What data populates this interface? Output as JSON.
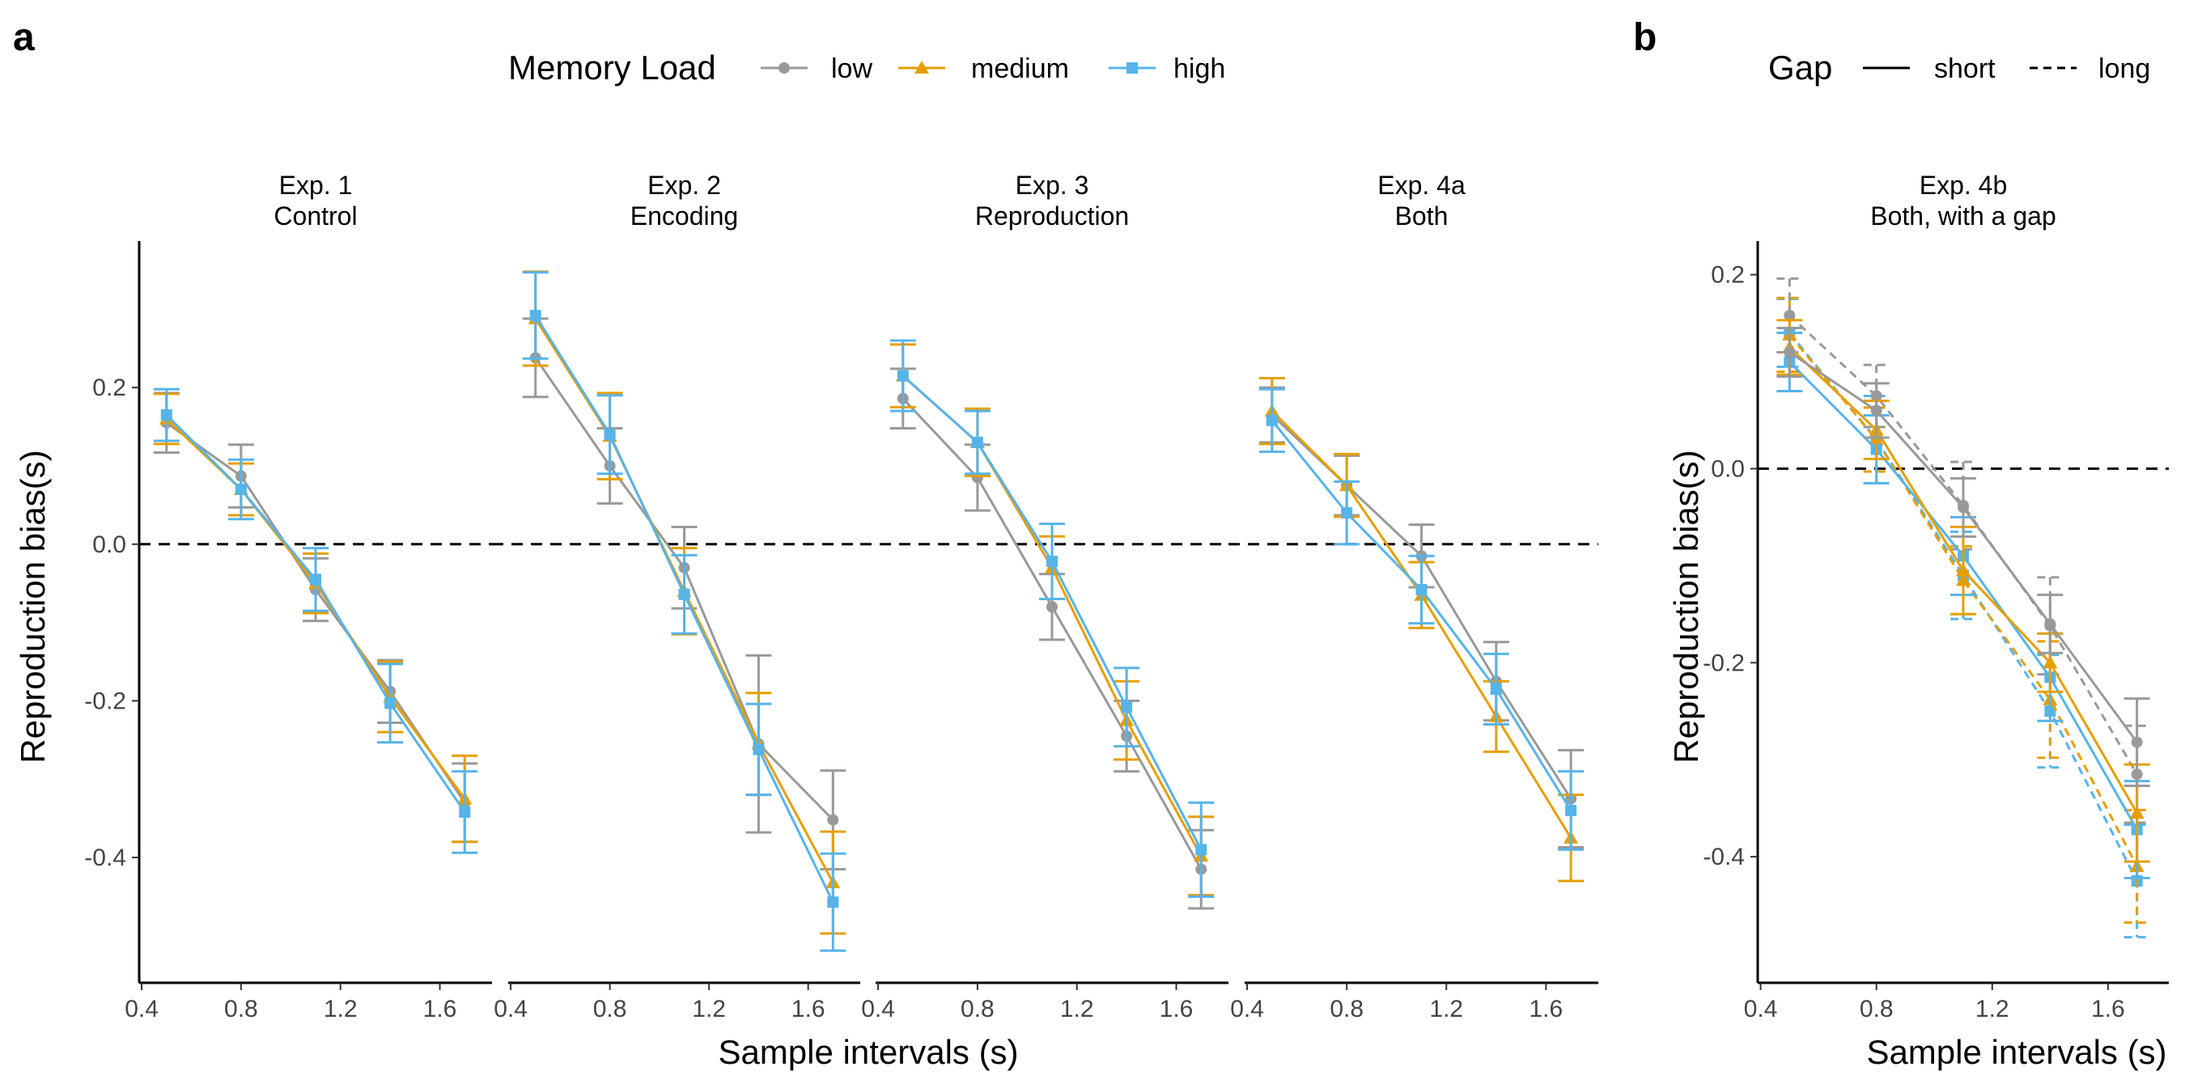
{
  "panel_labels": {
    "a": "a",
    "b": "b"
  },
  "legends": {
    "memory_load": {
      "title": "Memory Load",
      "items": [
        {
          "key": "low",
          "label": "low",
          "color": "#999999",
          "marker": "circle"
        },
        {
          "key": "medium",
          "label": "medium",
          "color": "#E69F00",
          "marker": "triangle"
        },
        {
          "key": "high",
          "label": "high",
          "color": "#56B4E9",
          "marker": "square"
        }
      ]
    },
    "gap": {
      "title": "Gap",
      "items": [
        {
          "key": "short",
          "label": "short",
          "linetype": "solid"
        },
        {
          "key": "long",
          "label": "long",
          "linetype": "dashed"
        }
      ]
    }
  },
  "axes": {
    "ylabel": "Reproduction bias(s)",
    "xlabel": "Sample intervals (s)"
  },
  "chart_data": [
    {
      "type": "line",
      "panel": "a",
      "ylabel": "Reproduction bias(s)",
      "xlabel": "Sample intervals (s)",
      "x": [
        0.5,
        0.8,
        1.1,
        1.4,
        1.7
      ],
      "x_ticks": [
        "0.4",
        "0.8",
        "1.2",
        "1.6"
      ],
      "x_tick_values": [
        0.4,
        0.8,
        1.2,
        1.6
      ],
      "xlim": [
        0.39,
        1.81
      ],
      "ylim": [
        -0.56,
        0.385
      ],
      "y_ticks": [
        "0.2",
        "0.0",
        "-0.2",
        "-0.4"
      ],
      "y_tick_values": [
        0.2,
        0.0,
        -0.2,
        -0.4
      ],
      "reference_line": 0,
      "facets": [
        {
          "title_line1": "Exp. 1",
          "title_line2": "Control",
          "series": [
            {
              "name": "low",
              "values": [
                0.155,
                0.087,
                -0.058,
                -0.188,
                -0.33
              ],
              "err": [
                0.038,
                0.04,
                0.04,
                0.04,
                0.05
              ]
            },
            {
              "name": "medium",
              "values": [
                0.16,
                0.07,
                -0.05,
                -0.195,
                -0.325
              ],
              "err": [
                0.032,
                0.033,
                0.038,
                0.045,
                0.055
              ]
            },
            {
              "name": "high",
              "values": [
                0.165,
                0.07,
                -0.045,
                -0.203,
                -0.342
              ],
              "err": [
                0.033,
                0.038,
                0.04,
                0.05,
                0.052
              ]
            }
          ]
        },
        {
          "title_line1": "Exp. 2",
          "title_line2": "Encoding",
          "series": [
            {
              "name": "low",
              "values": [
                0.238,
                0.1,
                -0.03,
                -0.255,
                -0.352
              ],
              "err": [
                0.05,
                0.048,
                0.052,
                0.113,
                0.063
              ]
            },
            {
              "name": "medium",
              "values": [
                0.288,
                0.138,
                -0.06,
                -0.255,
                -0.432
              ],
              "err": [
                0.06,
                0.055,
                0.055,
                0.065,
                0.065
              ]
            },
            {
              "name": "high",
              "values": [
                0.292,
                0.14,
                -0.064,
                -0.262,
                -0.457
              ],
              "err": [
                0.055,
                0.05,
                0.05,
                0.058,
                0.062
              ]
            }
          ]
        },
        {
          "title_line1": "Exp. 3",
          "title_line2": "Reproduction",
          "series": [
            {
              "name": "low",
              "values": [
                0.186,
                0.085,
                -0.08,
                -0.245,
                -0.415
              ],
              "err": [
                0.038,
                0.042,
                0.042,
                0.045,
                0.05
              ]
            },
            {
              "name": "medium",
              "values": [
                0.215,
                0.13,
                -0.03,
                -0.225,
                -0.398
              ],
              "err": [
                0.04,
                0.043,
                0.04,
                0.05,
                0.05
              ]
            },
            {
              "name": "high",
              "values": [
                0.215,
                0.13,
                -0.022,
                -0.208,
                -0.39
              ],
              "err": [
                0.045,
                0.04,
                0.048,
                0.05,
                0.06
              ]
            }
          ]
        },
        {
          "title_line1": "Exp. 4a",
          "title_line2": "Both",
          "series": [
            {
              "name": "low",
              "values": [
                0.165,
                0.075,
                -0.015,
                -0.175,
                -0.325
              ],
              "err": [
                0.035,
                0.038,
                0.04,
                0.05,
                0.062
              ]
            },
            {
              "name": "medium",
              "values": [
                0.17,
                0.075,
                -0.065,
                -0.22,
                -0.375
              ],
              "err": [
                0.042,
                0.04,
                0.042,
                0.045,
                0.055
              ]
            },
            {
              "name": "high",
              "values": [
                0.158,
                0.04,
                -0.058,
                -0.185,
                -0.34
              ],
              "err": [
                0.04,
                0.04,
                0.043,
                0.045,
                0.05
              ]
            }
          ]
        }
      ]
    },
    {
      "type": "line",
      "panel": "b",
      "ylabel": "Reproduction bias(s)",
      "xlabel": "Sample intervals (s)",
      "title_line1": "Exp. 4b",
      "title_line2": "Both, with a gap",
      "x": [
        0.5,
        0.8,
        1.1,
        1.4,
        1.7
      ],
      "x_ticks": [
        "0.4",
        "0.8",
        "1.2",
        "1.6"
      ],
      "x_tick_values": [
        0.4,
        0.8,
        1.2,
        1.6
      ],
      "xlim": [
        0.39,
        1.81
      ],
      "ylim": [
        -0.53,
        0.233
      ],
      "y_ticks": [
        "0.2",
        "0.0",
        "-0.2",
        "-0.4"
      ],
      "y_tick_values": [
        0.2,
        0.0,
        -0.2,
        -0.4
      ],
      "reference_line": 0,
      "series": [
        {
          "name": "low",
          "gap": "short",
          "values": [
            0.12,
            0.06,
            -0.04,
            -0.16,
            -0.282
          ],
          "err": [
            0.025,
            0.028,
            0.03,
            0.03,
            0.045
          ]
        },
        {
          "name": "medium",
          "gap": "short",
          "values": [
            0.125,
            0.04,
            -0.105,
            -0.2,
            -0.355
          ],
          "err": [
            0.028,
            0.03,
            0.045,
            0.03,
            0.05
          ]
        },
        {
          "name": "high",
          "gap": "short",
          "values": [
            0.11,
            0.02,
            -0.09,
            -0.215,
            -0.372
          ],
          "err": [
            0.03,
            0.035,
            0.04,
            0.045,
            0.05
          ]
        },
        {
          "name": "low",
          "gap": "long",
          "values": [
            0.158,
            0.075,
            -0.038,
            -0.162,
            -0.315
          ],
          "err": [
            0.038,
            0.032,
            0.045,
            0.05,
            0.05
          ]
        },
        {
          "name": "medium",
          "gap": "long",
          "values": [
            0.138,
            0.03,
            -0.115,
            -0.238,
            -0.41
          ],
          "err": [
            0.038,
            0.033,
            0.035,
            0.06,
            0.058
          ]
        },
        {
          "name": "high",
          "gap": "long",
          "values": [
            0.14,
            0.03,
            -0.11,
            -0.25,
            -0.425
          ],
          "err": [
            0.035,
            0.045,
            0.045,
            0.058,
            0.058
          ]
        }
      ]
    }
  ]
}
